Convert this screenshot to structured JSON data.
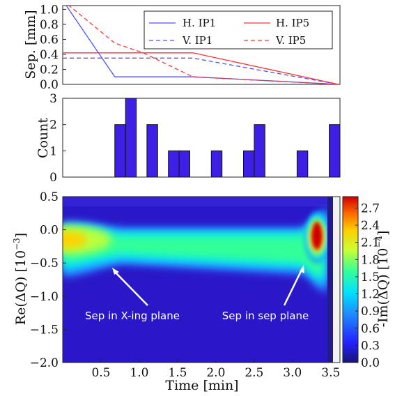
{
  "chart_data": [
    {
      "type": "line",
      "ylabel": "Sep. [mm]",
      "ylim": [
        0.0,
        1.05
      ],
      "yticks": [
        "0.0",
        "0.2",
        "0.4",
        "0.6",
        "0.8",
        "1.0"
      ],
      "legend_position": "top-right",
      "series": [
        {
          "name": "H. IP1",
          "color": "#4d4dff",
          "style": "solid",
          "points": [
            [
              0.0,
              1.12
            ],
            [
              0.68,
              0.1
            ],
            [
              1.7,
              0.1
            ],
            [
              3.6,
              0.0
            ]
          ]
        },
        {
          "name": "V. IP1",
          "color": "#4d4dff",
          "style": "dashed",
          "points": [
            [
              0.0,
              0.35
            ],
            [
              1.7,
              0.35
            ],
            [
              3.6,
              0.0
            ]
          ]
        },
        {
          "name": "H. IP5",
          "color": "#ff3333",
          "style": "solid",
          "points": [
            [
              0.0,
              0.42
            ],
            [
              1.7,
              0.42
            ],
            [
              3.6,
              0.0
            ]
          ]
        },
        {
          "name": "V. IP5",
          "color": "#ff3333",
          "style": "dashed",
          "points": [
            [
              0.0,
              1.12
            ],
            [
              0.68,
              0.55
            ],
            [
              1.05,
              0.42
            ],
            [
              1.7,
              0.1
            ],
            [
              3.6,
              0.0
            ]
          ]
        }
      ]
    },
    {
      "type": "bar",
      "ylabel": "Count",
      "ylim": [
        0,
        3
      ],
      "yticks": [
        "0",
        "1",
        "2",
        "3"
      ],
      "bar_color": "#3d1fe6",
      "bars": [
        {
          "start": 0.68,
          "end": 0.82,
          "count": 2
        },
        {
          "start": 0.82,
          "end": 0.96,
          "count": 3
        },
        {
          "start": 1.1,
          "end": 1.24,
          "count": 2
        },
        {
          "start": 1.38,
          "end": 1.52,
          "count": 1
        },
        {
          "start": 1.52,
          "end": 1.66,
          "count": 1
        },
        {
          "start": 1.94,
          "end": 2.08,
          "count": 1
        },
        {
          "start": 2.36,
          "end": 2.5,
          "count": 1
        },
        {
          "start": 2.5,
          "end": 2.64,
          "count": 2
        },
        {
          "start": 3.06,
          "end": 3.2,
          "count": 1
        },
        {
          "start": 3.48,
          "end": 3.62,
          "count": 2
        }
      ]
    },
    {
      "type": "heatmap",
      "xlabel": "Time [min]",
      "ylabel": "Re(ΔQ) [10",
      "ylabel_exp": "−3",
      "ylabel_close": "]",
      "xlim": [
        0.0,
        3.62
      ],
      "ylim": [
        -2.0,
        0.5
      ],
      "xticks": [
        "0.5",
        "1.0",
        "1.5",
        "2.0",
        "2.5",
        "3.0",
        "3.5"
      ],
      "yticks": [
        "−2.0",
        "−1.5",
        "−1.0",
        "−0.5",
        "0.0",
        "0.5"
      ],
      "colorbar_label": "-Im(ΔQ) [10",
      "colorbar_label_exp": "−4",
      "colorbar_label_close": "]",
      "colorbar_range": [
        0.0,
        2.9
      ],
      "colorbar_ticks": [
        "0.0",
        "0.3",
        "0.6",
        "0.9",
        "1.2",
        "1.5",
        "1.8",
        "2.1",
        "2.4",
        "2.7"
      ],
      "annotations": [
        {
          "text": "Sep in X-ing plane",
          "arrow_to": [
            0.68,
            -0.62
          ]
        },
        {
          "text": "Sep in sep plane",
          "arrow_to": [
            3.28,
            -0.78
          ]
        }
      ]
    }
  ]
}
